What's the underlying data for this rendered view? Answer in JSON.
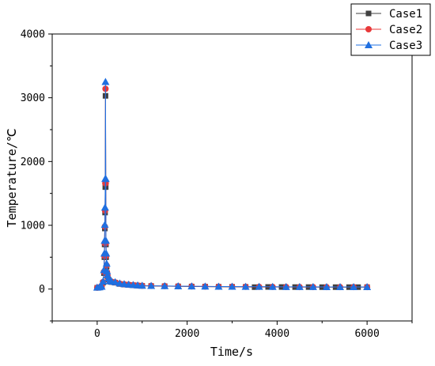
{
  "chart_data": {
    "type": "line",
    "title": "",
    "xlabel": "Time/s",
    "ylabel": "Temperature/℃",
    "xlim": [
      -1000,
      7000
    ],
    "ylim": [
      -500,
      4000
    ],
    "xticks": [
      0,
      2000,
      4000,
      6000
    ],
    "yticks": [
      0,
      1000,
      2000,
      3000,
      4000
    ],
    "grid": false,
    "legend_position": "top-right",
    "series": [
      {
        "name": "Case1",
        "color": "#404040",
        "marker": "square",
        "x": [
          0,
          50,
          100,
          130,
          150,
          160,
          165,
          170,
          175,
          180,
          185,
          190,
          195,
          200,
          210,
          220,
          230,
          250,
          280,
          320,
          400,
          500,
          600,
          700,
          800,
          900,
          1000,
          1200,
          1500,
          1800,
          2100,
          2400,
          2700,
          3000,
          3300,
          3500,
          3800,
          4100,
          4400,
          4700,
          5000,
          5300,
          5600,
          5800,
          6000
        ],
        "y": [
          20,
          25,
          35,
          100,
          250,
          500,
          700,
          950,
          1200,
          1600,
          3030,
          1600,
          700,
          500,
          350,
          250,
          200,
          150,
          120,
          110,
          100,
          80,
          70,
          65,
          60,
          55,
          50,
          48,
          45,
          42,
          40,
          38,
          36,
          35,
          34,
          30,
          33,
          32,
          31,
          31,
          30,
          30,
          30,
          30,
          30
        ]
      },
      {
        "name": "Case2",
        "color": "#e8393a",
        "marker": "circle",
        "x": [
          0,
          50,
          100,
          130,
          150,
          160,
          165,
          170,
          175,
          180,
          185,
          190,
          195,
          200,
          210,
          220,
          230,
          250,
          280,
          320,
          400,
          500,
          600,
          700,
          800,
          900,
          1000,
          1200,
          1500,
          1800,
          2100,
          2400,
          2700,
          3000,
          3300,
          3600,
          3900,
          4200,
          4500,
          4800,
          5100,
          5400,
          5700,
          6000
        ],
        "y": [
          22,
          27,
          38,
          110,
          270,
          520,
          720,
          980,
          1230,
          1660,
          3140,
          1660,
          720,
          520,
          370,
          260,
          210,
          160,
          125,
          115,
          105,
          85,
          75,
          68,
          62,
          57,
          52,
          50,
          47,
          44,
          42,
          40,
          38,
          37,
          36,
          35,
          34,
          33,
          32,
          32,
          31,
          31,
          31,
          31
        ]
      },
      {
        "name": "Case3",
        "color": "#1f6fe0",
        "marker": "triangle",
        "x": [
          0,
          50,
          100,
          130,
          150,
          160,
          165,
          170,
          175,
          180,
          185,
          190,
          195,
          200,
          210,
          220,
          230,
          250,
          280,
          320,
          400,
          500,
          600,
          700,
          800,
          900,
          1000,
          1200,
          1500,
          1800,
          2100,
          2400,
          2700,
          3000,
          3300,
          3600,
          3900,
          4200,
          4500,
          4800,
          5100,
          5400,
          5700,
          6000
        ],
        "y": [
          25,
          30,
          40,
          120,
          300,
          560,
          760,
          1010,
          1280,
          1730,
          3250,
          1730,
          760,
          560,
          400,
          280,
          220,
          170,
          130,
          120,
          110,
          90,
          80,
          72,
          65,
          60,
          55,
          52,
          49,
          46,
          44,
          42,
          40,
          39,
          38,
          37,
          36,
          35,
          34,
          34,
          33,
          33,
          33,
          33
        ]
      }
    ]
  }
}
